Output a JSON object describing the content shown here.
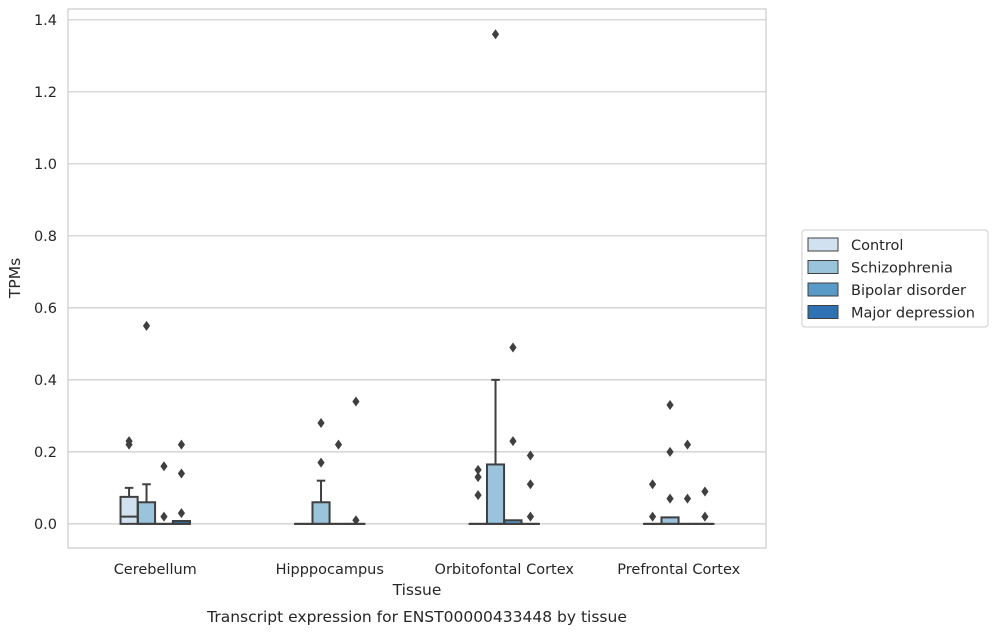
{
  "chart_data": {
    "type": "boxplot",
    "caption": "Transcript expression for ENST00000433448 by tissue",
    "xlabel": "Tissue",
    "ylabel": "TPMs",
    "ylim": [
      -0.067,
      1.43
    ],
    "yticks": [
      "0.0",
      "0.2",
      "0.4",
      "0.6",
      "0.8",
      "1.0",
      "1.2",
      "1.4"
    ],
    "grid": "horizontal",
    "legend_placement": "right",
    "categories": [
      "Cerebellum",
      "Hipppocampus",
      "Orbitofontal Cortex",
      "Prefrontal Cortex"
    ],
    "series": [
      {
        "name": "Control",
        "color": "#d1e1f0",
        "boxes": [
          {
            "q1": 0.0,
            "median": 0.02,
            "q3": 0.075,
            "whislo": 0.0,
            "whishi": 0.1,
            "fliers": [
              0.22,
              0.23
            ]
          },
          {
            "q1": 0.0,
            "median": 0.0,
            "q3": 0.0,
            "whislo": 0.0,
            "whishi": 0.0,
            "fliers": []
          },
          {
            "q1": 0.0,
            "median": 0.0,
            "q3": 0.0,
            "whislo": 0.0,
            "whishi": 0.0,
            "fliers": [
              0.08,
              0.13,
              0.15
            ]
          },
          {
            "q1": 0.0,
            "median": 0.0,
            "q3": 0.0,
            "whislo": 0.0,
            "whishi": 0.0,
            "fliers": [
              0.02,
              0.11
            ]
          }
        ]
      },
      {
        "name": "Schizophrenia",
        "color": "#9ac3dc",
        "boxes": [
          {
            "q1": 0.0,
            "median": 0.0,
            "q3": 0.06,
            "whislo": 0.0,
            "whishi": 0.11,
            "fliers": [
              0.55
            ]
          },
          {
            "q1": 0.0,
            "median": 0.0,
            "q3": 0.06,
            "whislo": 0.0,
            "whishi": 0.12,
            "fliers": [
              0.17,
              0.28
            ]
          },
          {
            "q1": 0.0,
            "median": 0.0,
            "q3": 0.165,
            "whislo": 0.0,
            "whishi": 0.4,
            "fliers": [
              1.36
            ]
          },
          {
            "q1": 0.0,
            "median": 0.0,
            "q3": 0.018,
            "whislo": 0.0,
            "whishi": 0.018,
            "fliers": [
              0.07,
              0.2,
              0.33
            ]
          }
        ]
      },
      {
        "name": "Bipolar disorder",
        "color": "#5a9ac8",
        "boxes": [
          {
            "q1": 0.0,
            "median": 0.0,
            "q3": 0.0,
            "whislo": 0.0,
            "whishi": 0.0,
            "fliers": [
              0.02,
              0.16
            ]
          },
          {
            "q1": 0.0,
            "median": 0.0,
            "q3": 0.0,
            "whislo": 0.0,
            "whishi": 0.0,
            "fliers": [
              0.22
            ]
          },
          {
            "q1": 0.0,
            "median": 0.0,
            "q3": 0.01,
            "whislo": 0.0,
            "whishi": 0.01,
            "fliers": [
              0.23,
              0.49
            ]
          },
          {
            "q1": 0.0,
            "median": 0.0,
            "q3": 0.0,
            "whislo": 0.0,
            "whishi": 0.0,
            "fliers": [
              0.07,
              0.22
            ]
          }
        ]
      },
      {
        "name": "Major depression",
        "color": "#2e72b3",
        "boxes": [
          {
            "q1": 0.0,
            "median": 0.0,
            "q3": 0.008,
            "whislo": 0.0,
            "whishi": 0.008,
            "fliers": [
              0.03,
              0.14,
              0.22
            ]
          },
          {
            "q1": 0.0,
            "median": 0.0,
            "q3": 0.0,
            "whislo": 0.0,
            "whishi": 0.0,
            "fliers": [
              0.01,
              0.34
            ]
          },
          {
            "q1": 0.0,
            "median": 0.0,
            "q3": 0.0,
            "whislo": 0.0,
            "whishi": 0.0,
            "fliers": [
              0.02,
              0.11,
              0.19
            ]
          },
          {
            "q1": 0.0,
            "median": 0.0,
            "q3": 0.0,
            "whislo": 0.0,
            "whishi": 0.0,
            "fliers": [
              0.02,
              0.09
            ]
          }
        ]
      }
    ]
  }
}
